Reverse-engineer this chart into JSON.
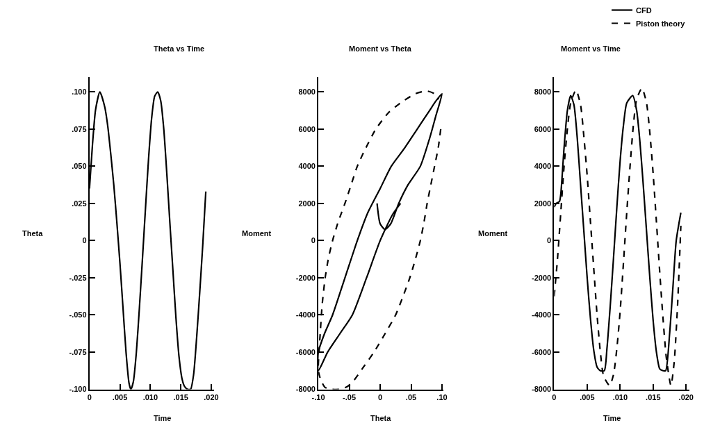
{
  "chart_data": [
    {
      "type": "line",
      "title": "Theta vs Time",
      "xlabel": "Time",
      "ylabel": "Theta",
      "xlim": [
        0,
        0.0205
      ],
      "ylim": [
        -0.1,
        0.11
      ],
      "xticks": [
        0,
        {
          "value": 0.005,
          "label": ".005"
        },
        {
          "value": 0.01,
          "label": ".010"
        },
        {
          "value": 0.015,
          "label": ".015"
        },
        {
          "value": 0.02,
          "label": ".020"
        }
      ],
      "yticks": [
        {
          "value": 0.1,
          "label": ".100"
        },
        {
          "value": 0.075,
          "label": ".075"
        },
        {
          "value": 0.05,
          "label": ".050"
        },
        {
          "value": 0.025,
          "label": ".025"
        },
        0,
        {
          "value": -0.025,
          "label": "-.025"
        },
        {
          "value": -0.05,
          "label": "-.050"
        },
        {
          "value": -0.075,
          "label": "-.075"
        },
        {
          "value": -0.1,
          "label": "-.100"
        }
      ],
      "series": [
        {
          "color": "#000000",
          "line_style": "solid",
          "x": [
            0,
            0.0005,
            0.001,
            0.0017,
            0.0025,
            0.003,
            0.0035,
            0.004,
            0.0045,
            0.005,
            0.0055,
            0.006,
            0.0065,
            0.0068,
            0.0072,
            0.0077,
            0.0082,
            0.0087,
            0.0092,
            0.0097,
            0.0102,
            0.0107,
            0.0112,
            0.0117,
            0.0122,
            0.0127,
            0.0132,
            0.0137,
            0.0142,
            0.0147,
            0.0152,
            0.0156,
            0.0161,
            0.0166,
            0.0171,
            0.0176,
            0.0181,
            0.0186,
            0.0191
          ],
          "values": [
            0.035,
            0.065,
            0.088,
            0.1,
            0.09,
            0.077,
            0.058,
            0.037,
            0.012,
            -0.015,
            -0.045,
            -0.075,
            -0.096,
            -0.1,
            -0.095,
            -0.075,
            -0.045,
            -0.012,
            0.022,
            0.055,
            0.082,
            0.097,
            0.1,
            0.094,
            0.075,
            0.045,
            0.012,
            -0.02,
            -0.052,
            -0.078,
            -0.093,
            -0.098,
            -0.1,
            -0.1,
            -0.09,
            -0.065,
            -0.035,
            -0.003,
            0.033
          ]
        }
      ]
    },
    {
      "type": "line",
      "title": "Moment vs Theta",
      "xlabel": "Theta",
      "ylabel": "Moment",
      "xlim": [
        -0.1,
        0.102
      ],
      "ylim": [
        -8000,
        8800
      ],
      "xticks": [
        {
          "value": -0.1,
          "label": "-.10"
        },
        {
          "value": -0.05,
          "label": "-.05"
        },
        0,
        {
          "value": 0.05,
          "label": ".05"
        },
        {
          "value": 0.1,
          "label": ".10"
        }
      ],
      "yticks": [
        8000,
        6000,
        4000,
        2000,
        0,
        -2000,
        -4000,
        -6000,
        -8000
      ],
      "series": [
        {
          "color": "#000000",
          "line_style": "solid",
          "x": [
            -0.005,
            0,
            0.008,
            0.017,
            0.03,
            0.045,
            0.065,
            0.08,
            0.09,
            0.1,
            0.09,
            0.08,
            0.06,
            0.04,
            0.018,
            0,
            -0.02,
            -0.037,
            -0.055,
            -0.077,
            -0.09,
            -0.1,
            -0.1,
            -0.085,
            -0.065,
            -0.045,
            -0.022,
            0,
            0.02,
            0.033
          ],
          "values": [
            2000,
            900,
            600,
            900,
            2000,
            3000,
            4000,
            5500,
            6700,
            7900,
            7500,
            7000,
            6000,
            5000,
            4000,
            2800,
            1500,
            0,
            -1800,
            -4000,
            -5000,
            -6000,
            -7000,
            -6000,
            -5000,
            -4000,
            -2000,
            0,
            1400,
            2000
          ]
        },
        {
          "color": "#000000",
          "line_style": "dashed",
          "x": [
            0.098,
            0.094,
            0.088,
            0.082,
            0.076,
            0.071,
            0.065,
            0.057,
            0.048,
            0.037,
            0.025,
            0.008,
            -0.01,
            -0.027,
            -0.042,
            -0.053,
            -0.065,
            -0.078,
            -0.089,
            -0.096,
            -0.1,
            -0.099,
            -0.097,
            -0.094,
            -0.089,
            -0.084,
            -0.077,
            -0.068,
            -0.057,
            -0.047,
            -0.037,
            -0.023,
            -0.007,
            0.014,
            0.037,
            0.057,
            0.075,
            0.088,
            0.095
          ],
          "values": [
            6000,
            5000,
            4000,
            3000,
            2000,
            1000,
            0,
            -1000,
            -2000,
            -3000,
            -4000,
            -5000,
            -6000,
            -6800,
            -7500,
            -7850,
            -8000,
            -8000,
            -7900,
            -7500,
            -7000,
            -6000,
            -5000,
            -3500,
            -2000,
            -1000,
            0,
            1000,
            2000,
            3000,
            4000,
            5000,
            6000,
            6900,
            7500,
            7900,
            8050,
            7900,
            7600
          ]
        }
      ]
    },
    {
      "type": "line",
      "title": "Moment vs Time",
      "xlabel": "Time",
      "ylabel": "Moment",
      "xlim": [
        0,
        0.0205
      ],
      "ylim": [
        -8000,
        8800
      ],
      "legend": "top right",
      "xticks": [
        0,
        {
          "value": 0.005,
          "label": ".005"
        },
        {
          "value": 0.01,
          "label": ".010"
        },
        {
          "value": 0.015,
          "label": ".015"
        },
        {
          "value": 0.02,
          "label": ".020"
        }
      ],
      "yticks": [
        8000,
        6000,
        4000,
        2000,
        0,
        -2000,
        -4000,
        -6000,
        -8000
      ],
      "series": [
        {
          "name": "CFD",
          "color": "#000000",
          "line_style": "solid",
          "x": [
            0,
            0.0003,
            0.0008,
            0.001,
            0.0015,
            0.002,
            0.0025,
            0.003,
            0.0035,
            0.004,
            0.0045,
            0.005,
            0.0055,
            0.006,
            0.0065,
            0.007,
            0.0076,
            0.008,
            0.0085,
            0.009,
            0.0095,
            0.01,
            0.0105,
            0.011,
            0.0119,
            0.0125,
            0.013,
            0.0135,
            0.014,
            0.0145,
            0.015,
            0.0155,
            0.016,
            0.0165,
            0.0169,
            0.0175,
            0.018,
            0.0185,
            0.0192
          ],
          "values": [
            1800,
            2000,
            2100,
            2500,
            5000,
            7000,
            7800,
            7300,
            5500,
            3000,
            500,
            -2000,
            -4200,
            -5900,
            -6800,
            -7000,
            -7000,
            -5800,
            -3500,
            -900,
            1800,
            4300,
            6200,
            7400,
            7800,
            7000,
            5300,
            3000,
            500,
            -2000,
            -4300,
            -6000,
            -6900,
            -7000,
            -7000,
            -5000,
            -2500,
            0,
            1500
          ]
        },
        {
          "name": "Piston theory",
          "color": "#000000",
          "line_style": "dashed",
          "x": [
            0,
            0.0005,
            0.001,
            0.0015,
            0.002,
            0.0025,
            0.0033,
            0.004,
            0.0045,
            0.005,
            0.0055,
            0.006,
            0.0065,
            0.007,
            0.0075,
            0.0084,
            0.009,
            0.0095,
            0.01,
            0.0105,
            0.011,
            0.0115,
            0.012,
            0.0125,
            0.0133,
            0.014,
            0.0145,
            0.015,
            0.0155,
            0.016,
            0.0165,
            0.017,
            0.0177,
            0.0182,
            0.0187,
            0.0192
          ],
          "values": [
            -3000,
            -1000,
            1500,
            4000,
            6000,
            7400,
            8100,
            7300,
            5600,
            3500,
            1000,
            -1500,
            -4000,
            -6000,
            -7300,
            -7800,
            -7200,
            -5800,
            -3800,
            -1200,
            1500,
            4000,
            6200,
            7600,
            8200,
            7400,
            5800,
            3600,
            1000,
            -1700,
            -4200,
            -6300,
            -7800,
            -6500,
            -3500,
            800
          ]
        }
      ]
    }
  ]
}
